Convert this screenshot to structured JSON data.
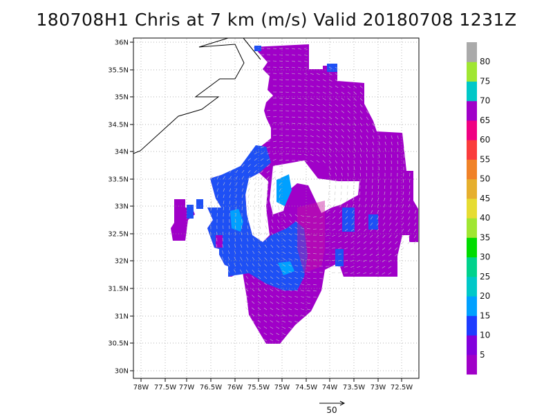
{
  "title": "180708H1 Chris at 7 km (m/s) Valid 20180708 1231Z",
  "lat_labels": [
    "36N",
    "35.5N",
    "35N",
    "34.5N",
    "34N",
    "33.5N",
    "33N",
    "32.5N",
    "32N",
    "31.5N",
    "31N",
    "30.5N",
    "30N"
  ],
  "lon_labels": [
    "78W",
    "77.5W",
    "77W",
    "76.5W",
    "76W",
    "75.5W",
    "75W",
    "74.5W",
    "74W",
    "73.5W",
    "73W",
    "72.5W"
  ],
  "colorbar": {
    "labels": [
      "5",
      "10",
      "15",
      "20",
      "25",
      "30",
      "35",
      "40",
      "45",
      "50",
      "55",
      "60",
      "65",
      "70",
      "75",
      "80"
    ],
    "colors": [
      "#a000c8",
      "#8200dc",
      "#1e3cff",
      "#00a0ff",
      "#00c8c8",
      "#00d28c",
      "#00dc00",
      "#a0e632",
      "#e6dc32",
      "#e6af2d",
      "#f08228",
      "#fa3c3c",
      "#f00082",
      "#a000c8",
      "#00c8c8",
      "#a0e632",
      "#aaaaaa"
    ]
  },
  "reference_vector": {
    "label": "50"
  },
  "map": {
    "lon_range": [
      -78.1,
      -72.2
    ],
    "lat_range": [
      29.9,
      36.1
    ],
    "coastline_color": "#000000",
    "wind_field_colors": {
      "low": "#8c00d2",
      "mid": "#a000c8",
      "blue": "#1e50f5",
      "cyan": "#00a0ff",
      "highlight": "#c814a0"
    }
  }
}
